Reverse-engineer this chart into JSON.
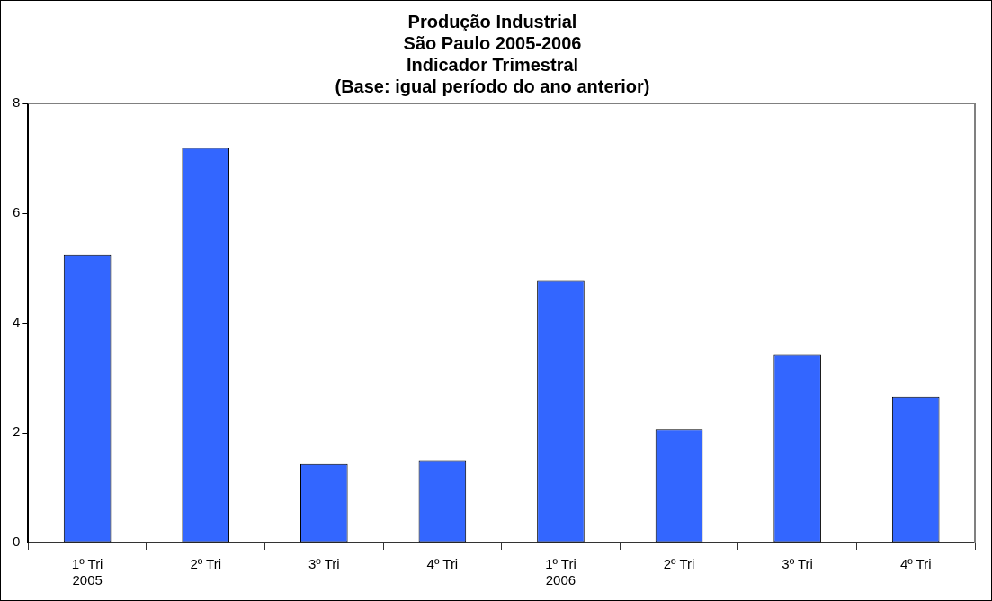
{
  "chart_data": {
    "type": "bar",
    "title": "Produção Industrial\nSão Paulo 2005-2006\nIndicador Trimestral\n(Base: igual período do ano anterior)",
    "categories": [
      "1º Tri\n2005",
      "2º Tri",
      "3º Tri",
      "4º Tri",
      "1º Tri\n2006",
      "2º Tri",
      "3º Tri",
      "4º Tri"
    ],
    "values": [
      5.25,
      7.19,
      1.43,
      1.5,
      4.78,
      2.06,
      3.42,
      2.66
    ],
    "color": "#3366ff",
    "ylim": [
      0,
      8
    ],
    "yticks": [
      0,
      2,
      4,
      6,
      8
    ],
    "grid": false,
    "legend": false
  }
}
